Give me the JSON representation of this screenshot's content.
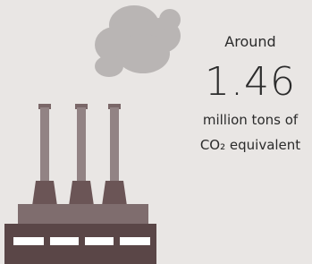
{
  "infographic": {
    "prefix": "Around",
    "value": 1.46,
    "unit_line1": "million tons of",
    "unit_line2": "CO₂ equivalent"
  }
}
